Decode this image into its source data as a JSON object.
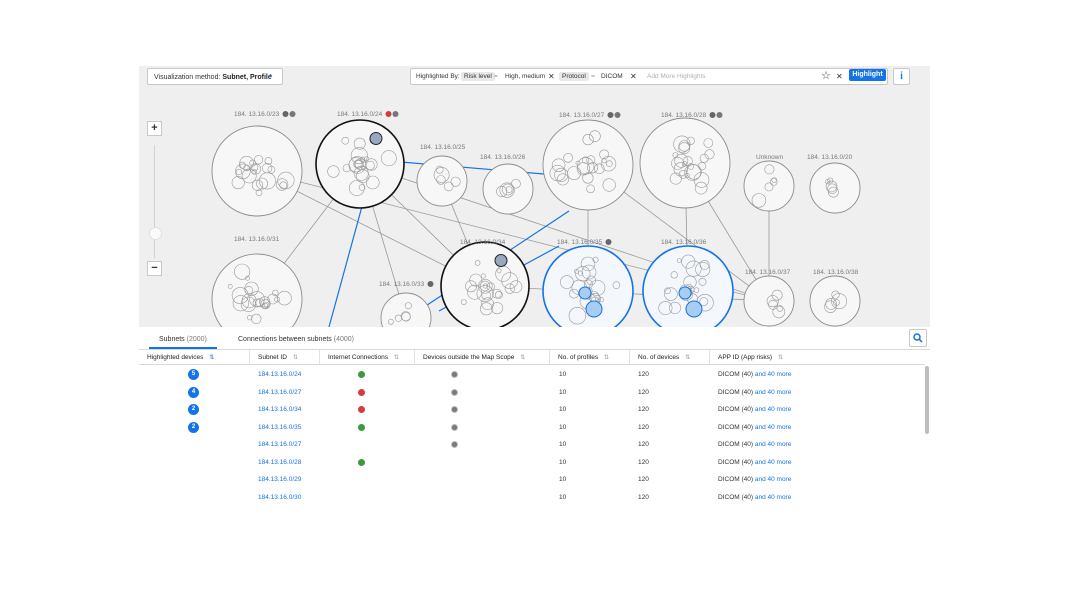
{
  "toolbar": {
    "viz_label": "Visualization method:",
    "viz_value": "Subnet, Profile",
    "highlighted_by": "Highlighted By:",
    "filters": [
      {
        "key": "Risk level",
        "value": "High, medium"
      },
      {
        "key": "Protocol",
        "value": "DICOM"
      }
    ],
    "add_placeholder": "Add More Highlights",
    "highlight_label": "Highlight",
    "info_label": "i",
    "zoom_in": "+",
    "zoom_out": "−"
  },
  "map": {
    "subnet_labels": {
      "s23": "184. 13.16.0/23",
      "s24": "184. 13.16.0/24",
      "s25": "184. 13.16.0/25",
      "s26": "184. 13.16.0/26",
      "s27": "184. 13.16.0/27",
      "s28": "184. 13.16.0/28",
      "unknown": "Unknown",
      "s20": "184. 13.16.0/20",
      "s31": "184. 13.16.0/31",
      "s33": "184. 13.16.0/33",
      "s34": "184. 13.16.0/34",
      "s35": "184. 13.16.0/35",
      "s36": "184. 13.16.0/36",
      "s37": "184. 13.16.0/37",
      "s38": "184. 13.16.0/38"
    }
  },
  "tabs": [
    {
      "label": "Subnets",
      "count": "(2000)"
    },
    {
      "label": "Connections between subnets",
      "count": "(4000)"
    }
  ],
  "table": {
    "columns": [
      "Highlighted devices",
      "Subnet ID",
      "Internet Connections",
      "Devices outside the Map Scope",
      "No. of profiles",
      "No. of devices",
      "APP ID (App risks)"
    ],
    "rows": [
      {
        "badge": "5",
        "subnet": "184.13.16.0/24",
        "internet": "green",
        "outside": true,
        "profiles": "10",
        "devices": "120",
        "app": "DICOM (40)",
        "more": "and 40 more"
      },
      {
        "badge": "4",
        "subnet": "184.13.16.0/27",
        "internet": "red",
        "outside": true,
        "profiles": "10",
        "devices": "120",
        "app": "DICOM (40)",
        "more": "and 40 more"
      },
      {
        "badge": "2",
        "subnet": "184.13.16.0/34",
        "internet": "red",
        "outside": true,
        "profiles": "10",
        "devices": "120",
        "app": "DICOM (40)",
        "more": "and 40 more"
      },
      {
        "badge": "2",
        "subnet": "184.13.16.0/35",
        "internet": "green",
        "outside": true,
        "profiles": "10",
        "devices": "120",
        "app": "DICOM (40)",
        "more": "and 40 more"
      },
      {
        "badge": "",
        "subnet": "184.13.16.0/27",
        "internet": "",
        "outside": true,
        "profiles": "10",
        "devices": "120",
        "app": "DICOM (40)",
        "more": "and 40 more"
      },
      {
        "badge": "",
        "subnet": "184.13.16.0/28",
        "internet": "green",
        "outside": false,
        "profiles": "10",
        "devices": "120",
        "app": "DICOM (40)",
        "more": "and 40 more"
      },
      {
        "badge": "",
        "subnet": "184.13.16.0/29",
        "internet": "",
        "outside": false,
        "profiles": "10",
        "devices": "120",
        "app": "DICOM (40)",
        "more": "and 40 more"
      },
      {
        "badge": "",
        "subnet": "184.13.16.0/30",
        "internet": "",
        "outside": false,
        "profiles": "10",
        "devices": "120",
        "app": "DICOM (40)",
        "more": "and 40 more"
      }
    ]
  },
  "colors": {
    "accent": "#1473e6",
    "internet_green": "#3c9a3c",
    "internet_red": "#d33c3c"
  }
}
